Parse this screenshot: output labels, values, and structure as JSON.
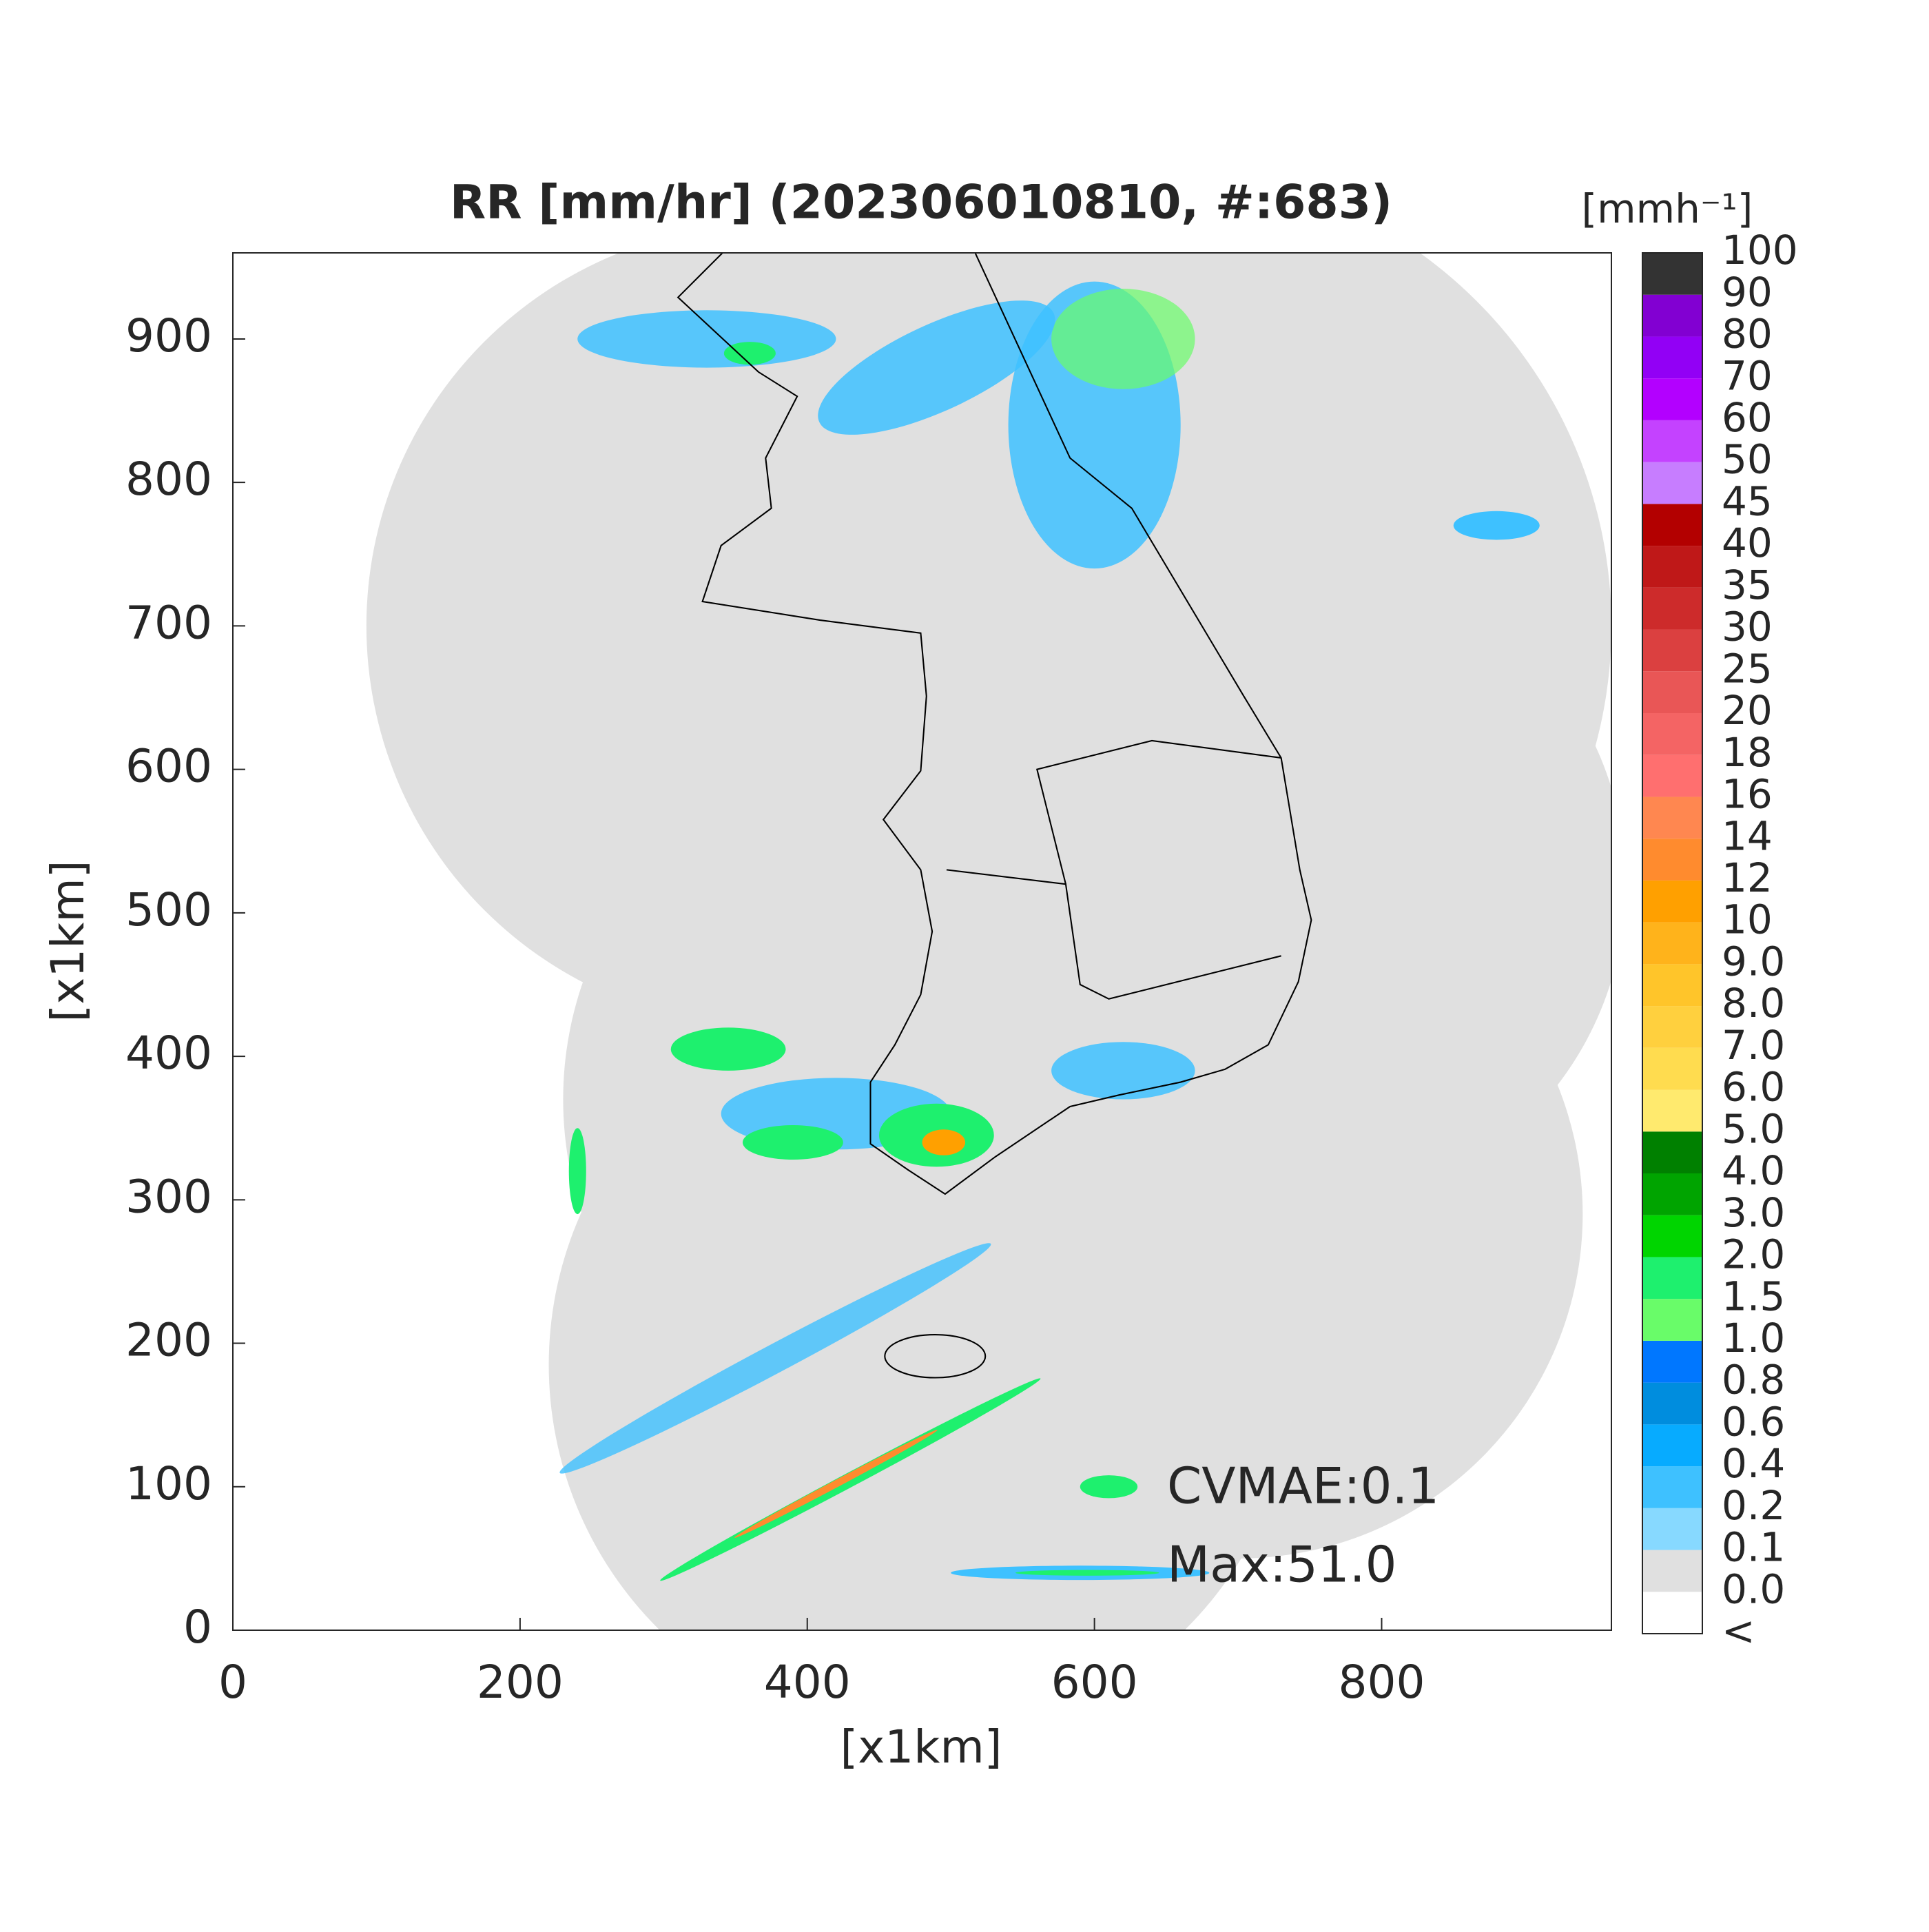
{
  "chart_data": {
    "type": "map",
    "title": "RR [mm/hr] (202306010810, #:683)",
    "xlabel": "[x1km]",
    "ylabel": "[x1km]",
    "xlim": [
      0,
      960
    ],
    "ylim": [
      0,
      960
    ],
    "xticks": [
      0,
      200,
      400,
      600,
      800
    ],
    "yticks": [
      0,
      100,
      200,
      300,
      400,
      500,
      600,
      700,
      800,
      900
    ],
    "annotations": [
      "CVMAE:0.1",
      "Max:51.0"
    ],
    "colorbar": {
      "label": "[mmh⁻¹]",
      "labels": [
        "<",
        "0.0",
        "0.1",
        "0.2",
        "0.4",
        "0.6",
        "0.8",
        "1.0",
        "1.5",
        "2.0",
        "3.0",
        "4.0",
        "5.0",
        "6.0",
        "7.0",
        "8.0",
        "9.0",
        "10",
        "12",
        "14",
        "16",
        "18",
        "20",
        "25",
        "30",
        "35",
        "40",
        "45",
        "50",
        "60",
        "70",
        "80",
        "90",
        "100"
      ],
      "colors": [
        "#ffffff",
        "#e0e0e0",
        "#87d9ff",
        "#3ec1ff",
        "#07abff",
        "#008dde",
        "#0077ff",
        "#69fc69",
        "#1ef06e",
        "#00d500",
        "#00a400",
        "#008000",
        "#ffea6e",
        "#ffdc4f",
        "#ffd03e",
        "#ffc52a",
        "#ffb31b",
        "#ffa000",
        "#ff8b2e",
        "#ff8750",
        "#ff6f6f",
        "#f46464",
        "#e95656",
        "#db4040",
        "#cd2b2b",
        "#bf1818",
        "#b30000",
        "#c77dff",
        "#c442ff",
        "#b300ff",
        "#9200f5",
        "#8200d2",
        "#333333"
      ]
    }
  }
}
